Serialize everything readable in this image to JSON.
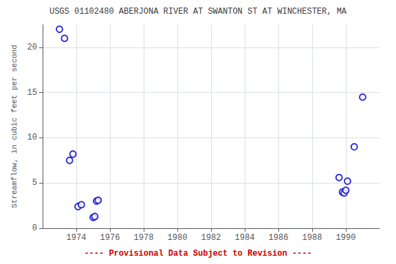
{
  "chart_data": {
    "type": "scatter",
    "title": "USGS 01102480 ABERJONA RIVER AT SWANTON ST AT WINCHESTER, MA",
    "ylabel": "Streamflow, in cubic feet per second",
    "x": [
      1973.0,
      1973.3,
      1973.6,
      1973.8,
      1974.1,
      1974.3,
      1975.0,
      1975.1,
      1975.2,
      1975.3,
      1989.6,
      1989.8,
      1989.9,
      1990.0,
      1990.1,
      1990.5,
      1991.0
    ],
    "values": [
      22.0,
      21.0,
      7.5,
      8.2,
      2.4,
      2.6,
      1.2,
      1.3,
      3.0,
      3.1,
      5.6,
      4.0,
      3.9,
      4.2,
      5.2,
      9.0,
      14.5
    ],
    "color": "#0000cc",
    "marker": "circle",
    "xlim": [
      1972,
      1992
    ],
    "xticks": [
      1974,
      1976,
      1978,
      1980,
      1982,
      1984,
      1986,
      1988,
      1990
    ],
    "ylim": [
      0,
      22.5
    ],
    "yticks": [
      0,
      5,
      10,
      15,
      20
    ],
    "grid": true,
    "annotations": [
      {
        "text": "---- Provisional Data Subject to Revision ----",
        "color": "#cc0000"
      }
    ]
  }
}
